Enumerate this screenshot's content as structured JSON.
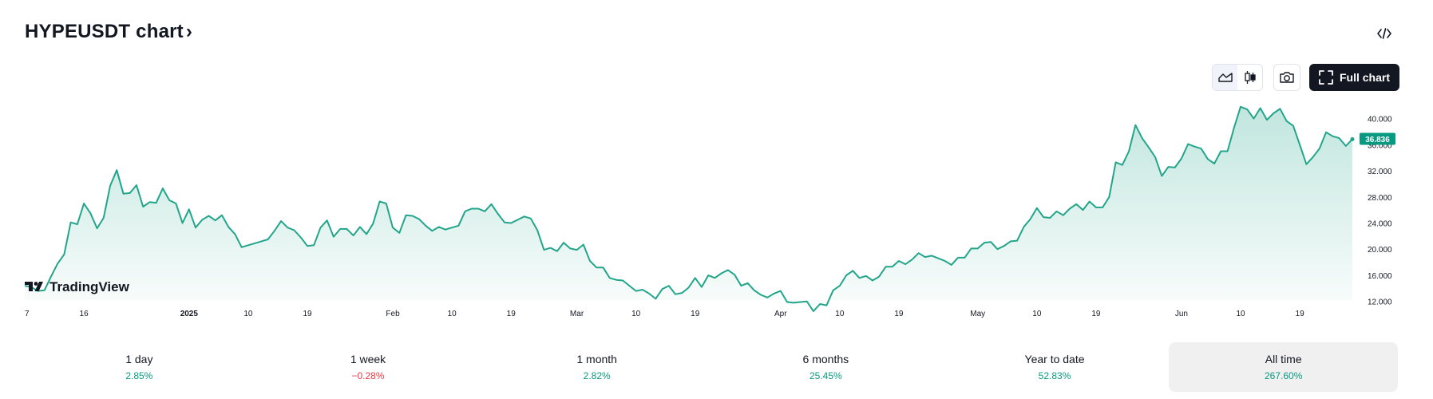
{
  "header": {
    "title": "HYPEUSDT chart",
    "chevron": "›",
    "embed_icon": "code-icon"
  },
  "toolbar": {
    "line_style_icon": "area-chart-icon",
    "candle_style_icon": "candlestick-icon",
    "snapshot_icon": "camera-icon",
    "full_chart_label": "Full chart",
    "full_chart_icon": "expand-icon"
  },
  "branding": {
    "logo_text": "TradingView"
  },
  "colors": {
    "line": "#22a58b",
    "fill_top": "#22a58b",
    "badge": "#089981",
    "positive": "#089981",
    "negative": "#f23645"
  },
  "chart_data": {
    "type": "area",
    "symbol": "HYPEUSDT",
    "last_price": "36.836",
    "ylim": [
      10.5,
      43
    ],
    "y_ticks": [
      {
        "value": 12,
        "label": "12.000"
      },
      {
        "value": 16,
        "label": "16.000"
      },
      {
        "value": 20,
        "label": "20.000"
      },
      {
        "value": 24,
        "label": "24.000"
      },
      {
        "value": 28,
        "label": "28.000"
      },
      {
        "value": 32,
        "label": "32.000"
      },
      {
        "value": 36,
        "label": "36.000"
      },
      {
        "value": 40,
        "label": "40.000"
      }
    ],
    "x_ticks": [
      {
        "i": 0,
        "label": "7",
        "bold": false
      },
      {
        "i": 9,
        "label": "16",
        "bold": false
      },
      {
        "i": 25,
        "label": "2025",
        "bold": true
      },
      {
        "i": 34,
        "label": "10",
        "bold": false
      },
      {
        "i": 43,
        "label": "19",
        "bold": false
      },
      {
        "i": 56,
        "label": "Feb",
        "bold": false
      },
      {
        "i": 65,
        "label": "10",
        "bold": false
      },
      {
        "i": 74,
        "label": "19",
        "bold": false
      },
      {
        "i": 84,
        "label": "Mar",
        "bold": false
      },
      {
        "i": 93,
        "label": "10",
        "bold": false
      },
      {
        "i": 102,
        "label": "19",
        "bold": false
      },
      {
        "i": 115,
        "label": "Apr",
        "bold": false
      },
      {
        "i": 124,
        "label": "10",
        "bold": false
      },
      {
        "i": 133,
        "label": "19",
        "bold": false
      },
      {
        "i": 145,
        "label": "May",
        "bold": false
      },
      {
        "i": 154,
        "label": "10",
        "bold": false
      },
      {
        "i": 163,
        "label": "19",
        "bold": false
      },
      {
        "i": 176,
        "label": "Jun",
        "bold": false
      },
      {
        "i": 185,
        "label": "10",
        "bold": false
      },
      {
        "i": 194,
        "label": "19",
        "bold": false
      }
    ],
    "values": [
      14.4,
      14.2,
      13.6,
      13.7,
      15.8,
      17.8,
      19.2,
      24.1,
      23.8,
      27.0,
      25.5,
      23.2,
      24.8,
      29.7,
      32.1,
      28.5,
      28.6,
      29.8,
      26.5,
      27.2,
      27.1,
      29.3,
      27.5,
      27.0,
      24.0,
      26.1,
      23.3,
      24.5,
      25.1,
      24.4,
      25.2,
      23.4,
      22.3,
      20.3,
      20.6,
      20.9,
      21.2,
      21.5,
      22.8,
      24.3,
      23.3,
      22.9,
      21.8,
      20.5,
      20.6,
      23.3,
      24.4,
      21.9,
      23.1,
      23.1,
      22.1,
      23.4,
      22.3,
      23.9,
      27.3,
      27.0,
      23.3,
      22.5,
      25.2,
      25.1,
      24.6,
      23.6,
      22.8,
      23.4,
      23.0,
      23.3,
      23.6,
      25.8,
      26.2,
      26.2,
      25.8,
      26.9,
      25.4,
      24.1,
      24.0,
      24.5,
      25.0,
      24.7,
      22.9,
      19.9,
      20.2,
      19.7,
      21.0,
      20.1,
      19.9,
      20.7,
      18.2,
      17.2,
      17.2,
      15.6,
      15.3,
      15.2,
      14.4,
      13.6,
      13.8,
      13.2,
      12.4,
      13.9,
      14.4,
      13.1,
      13.3,
      14.1,
      15.6,
      14.2,
      16.0,
      15.6,
      16.3,
      16.8,
      16.1,
      14.4,
      14.8,
      13.7,
      13.0,
      12.6,
      13.2,
      13.6,
      11.9,
      11.8,
      11.9,
      12.0,
      10.5,
      11.6,
      11.4,
      13.7,
      14.4,
      16.0,
      16.7,
      15.6,
      15.9,
      15.2,
      15.8,
      17.3,
      17.3,
      18.2,
      17.7,
      18.4,
      19.4,
      18.8,
      19.0,
      18.6,
      18.2,
      17.6,
      18.7,
      18.7,
      20.1,
      20.1,
      21.0,
      21.1,
      20.0,
      20.5,
      21.2,
      21.3,
      23.4,
      24.6,
      26.3,
      24.9,
      24.8,
      25.8,
      25.2,
      26.2,
      26.9,
      26.0,
      27.3,
      26.4,
      26.4,
      28.0,
      33.3,
      32.9,
      35.0,
      39.0,
      37.0,
      35.6,
      34.1,
      31.2,
      32.6,
      32.5,
      33.9,
      36.1,
      35.7,
      35.4,
      33.8,
      33.1,
      35.0,
      35.0,
      38.6,
      41.8,
      41.4,
      40.0,
      41.6,
      39.8,
      40.8,
      41.5,
      39.6,
      38.9,
      36.0,
      33.0,
      34.1,
      35.4,
      37.9,
      37.3,
      37.0,
      35.8,
      36.836
    ]
  },
  "periods": [
    {
      "label": "1 day",
      "change": "2.85%",
      "direction": "positive",
      "active": false
    },
    {
      "label": "1 week",
      "change": "−0.28%",
      "direction": "negative",
      "active": false
    },
    {
      "label": "1 month",
      "change": "2.82%",
      "direction": "positive",
      "active": false
    },
    {
      "label": "6 months",
      "change": "25.45%",
      "direction": "positive",
      "active": false
    },
    {
      "label": "Year to date",
      "change": "52.83%",
      "direction": "positive",
      "active": false
    },
    {
      "label": "All time",
      "change": "267.60%",
      "direction": "positive",
      "active": true
    }
  ]
}
